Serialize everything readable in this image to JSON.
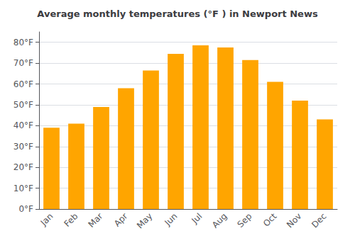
{
  "chart_data": {
    "type": "bar",
    "title": "Average monthly temperatures (°F ) in Newport News",
    "categories": [
      "Jan",
      "Feb",
      "Mar",
      "Apr",
      "May",
      "Jun",
      "Jul",
      "Aug",
      "Sep",
      "Oct",
      "Nov",
      "Dec"
    ],
    "values": [
      39,
      41,
      49,
      58,
      66.5,
      74.5,
      78.5,
      77.5,
      71.5,
      61,
      52,
      43
    ],
    "color": "#FFA500",
    "ylim": [
      0,
      85
    ],
    "yticks": [
      {
        "value": 0,
        "label": "0°F"
      },
      {
        "value": 10,
        "label": "10°F"
      },
      {
        "value": 20,
        "label": "20°F"
      },
      {
        "value": 30,
        "label": "30°F"
      },
      {
        "value": 40,
        "label": "40°F"
      },
      {
        "value": 50,
        "label": "50°F"
      },
      {
        "value": 60,
        "label": "60°F"
      },
      {
        "value": 70,
        "label": "70°F"
      },
      {
        "value": 80,
        "label": "80°F"
      }
    ],
    "grid": true
  }
}
